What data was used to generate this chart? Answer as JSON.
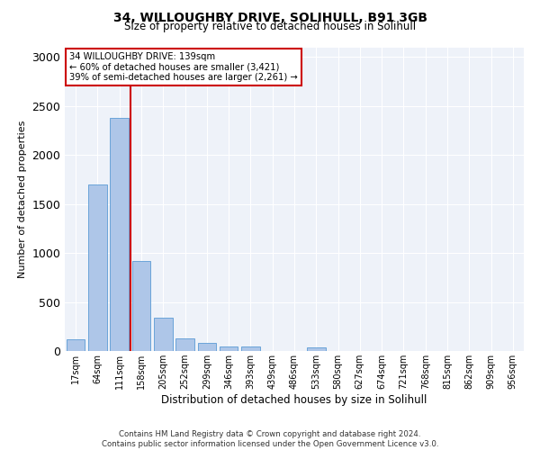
{
  "title_line1": "34, WILLOUGHBY DRIVE, SOLIHULL, B91 3GB",
  "title_line2": "Size of property relative to detached houses in Solihull",
  "xlabel": "Distribution of detached houses by size in Solihull",
  "ylabel": "Number of detached properties",
  "categories": [
    "17sqm",
    "64sqm",
    "111sqm",
    "158sqm",
    "205sqm",
    "252sqm",
    "299sqm",
    "346sqm",
    "393sqm",
    "439sqm",
    "486sqm",
    "533sqm",
    "580sqm",
    "627sqm",
    "674sqm",
    "721sqm",
    "768sqm",
    "815sqm",
    "862sqm",
    "909sqm",
    "956sqm"
  ],
  "values": [
    120,
    1700,
    2380,
    920,
    340,
    130,
    80,
    50,
    45,
    0,
    0,
    40,
    0,
    0,
    0,
    0,
    0,
    0,
    0,
    0,
    0
  ],
  "bar_color": "#aec6e8",
  "bar_edge_color": "#5b9bd5",
  "vline_color": "#cc0000",
  "vline_pos": 2.5,
  "annotation_text": "34 WILLOUGHBY DRIVE: 139sqm\n← 60% of detached houses are smaller (3,421)\n39% of semi-detached houses are larger (2,261) →",
  "annotation_box_color": "white",
  "annotation_box_edgecolor": "#cc0000",
  "ylim": [
    0,
    3100
  ],
  "yticks": [
    0,
    500,
    1000,
    1500,
    2000,
    2500,
    3000
  ],
  "background_color": "#eef2f9",
  "footer_line1": "Contains HM Land Registry data © Crown copyright and database right 2024.",
  "footer_line2": "Contains public sector information licensed under the Open Government Licence v3.0."
}
